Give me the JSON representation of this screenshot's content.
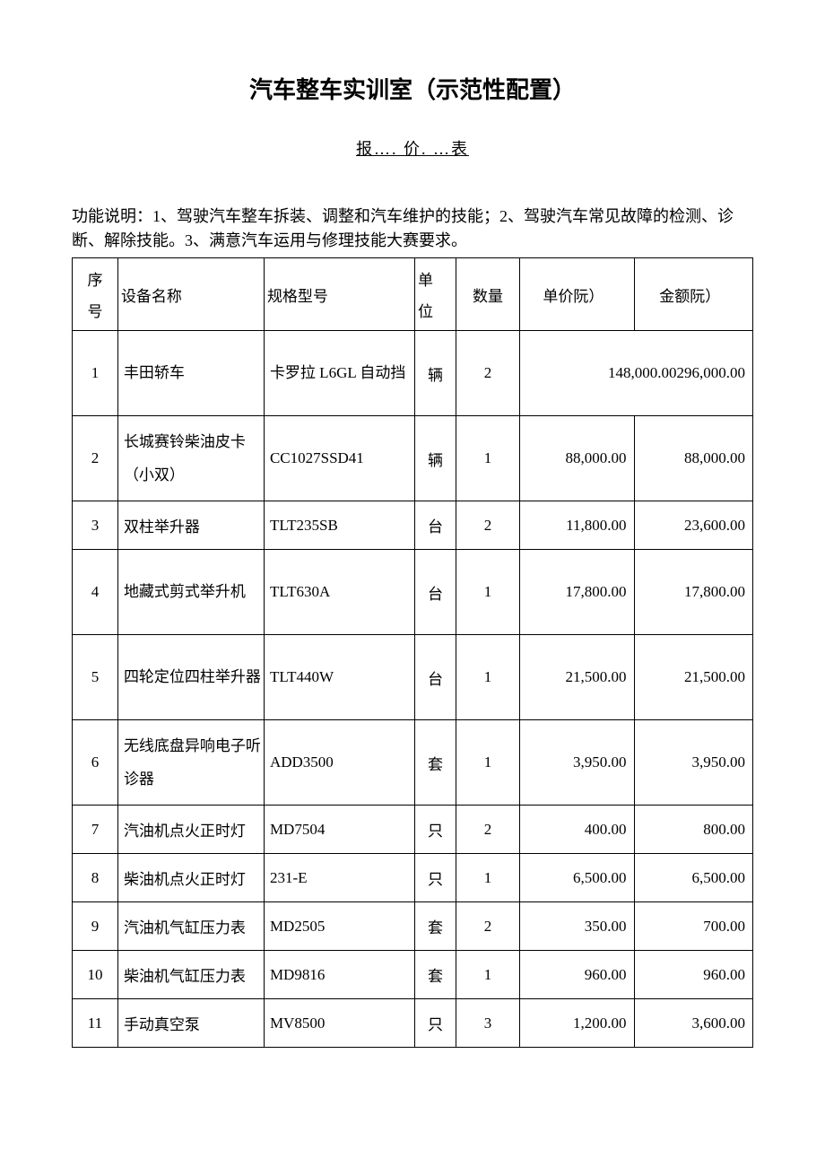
{
  "document": {
    "title": "汽车整车实训室（示范性配置）",
    "subtitle": "报…. 价. …表",
    "description": "功能说明：1、驾驶汽车整车拆装、调整和汽车维护的技能；2、驾驶汽车常见故障的检测、诊断、解除技能。3、满意汽车运用与修理技能大赛要求。"
  },
  "table": {
    "columns": {
      "seq_top": "序",
      "seq_bottom": "号",
      "name": "设备名称",
      "spec": "规格型号",
      "unit_top": "单",
      "unit_bottom": "位",
      "qty": "数量",
      "price": "单价阮）",
      "amount": "金额阮）"
    },
    "rows": [
      {
        "seq": "1",
        "name": "丰田轿车",
        "spec": "卡罗拉 L6GL 自动挡",
        "unit": "辆",
        "qty": "2",
        "price": "148,000.00",
        "amount": "296,000.00",
        "merged_price_amount": true,
        "tall": true
      },
      {
        "seq": "2",
        "name": "长城赛铃柴油皮卡（小双）",
        "spec": "CC1027SSD41",
        "unit": "辆",
        "qty": "1",
        "price": "88,000.00",
        "amount": "88,000.00",
        "tall": true
      },
      {
        "seq": "3",
        "name": "双柱举升器",
        "spec": "TLT235SB",
        "unit": "台",
        "qty": "2",
        "price": "11,800.00",
        "amount": "23,600.00"
      },
      {
        "seq": "4",
        "name": "地藏式剪式举升机",
        "spec": "TLT630A",
        "unit": "台",
        "qty": "1",
        "price": "17,800.00",
        "amount": "17,800.00",
        "tall": true
      },
      {
        "seq": "5",
        "name": "四轮定位四柱举升器",
        "spec": "TLT440W",
        "unit": "台",
        "qty": "1",
        "price": "21,500.00",
        "amount": "21,500.00",
        "tall": true
      },
      {
        "seq": "6",
        "name": "无线底盘异响电子听诊器",
        "spec": "ADD3500",
        "unit": "套",
        "qty": "1",
        "price": "3,950.00",
        "amount": "3,950.00",
        "tall": true
      },
      {
        "seq": "7",
        "name": "汽油机点火正时灯",
        "spec": "MD7504",
        "unit": "只",
        "qty": "2",
        "price": "400.00",
        "amount": "800.00"
      },
      {
        "seq": "8",
        "name": "柴油机点火正时灯",
        "spec": "231-E",
        "unit": "只",
        "qty": "1",
        "price": "6,500.00",
        "amount": "6,500.00"
      },
      {
        "seq": "9",
        "name": "汽油机气缸压力表",
        "spec": "MD2505",
        "unit": "套",
        "qty": "2",
        "price": "350.00",
        "amount": "700.00"
      },
      {
        "seq": "10",
        "name": "柴油机气缸压力表",
        "spec": "MD9816",
        "unit": "套",
        "qty": "1",
        "price": "960.00",
        "amount": "960.00"
      },
      {
        "seq": "11",
        "name": "手动真空泵",
        "spec": "MV8500",
        "unit": "只",
        "qty": "3",
        "price": "1,200.00",
        "amount": "3,600.00"
      }
    ]
  }
}
